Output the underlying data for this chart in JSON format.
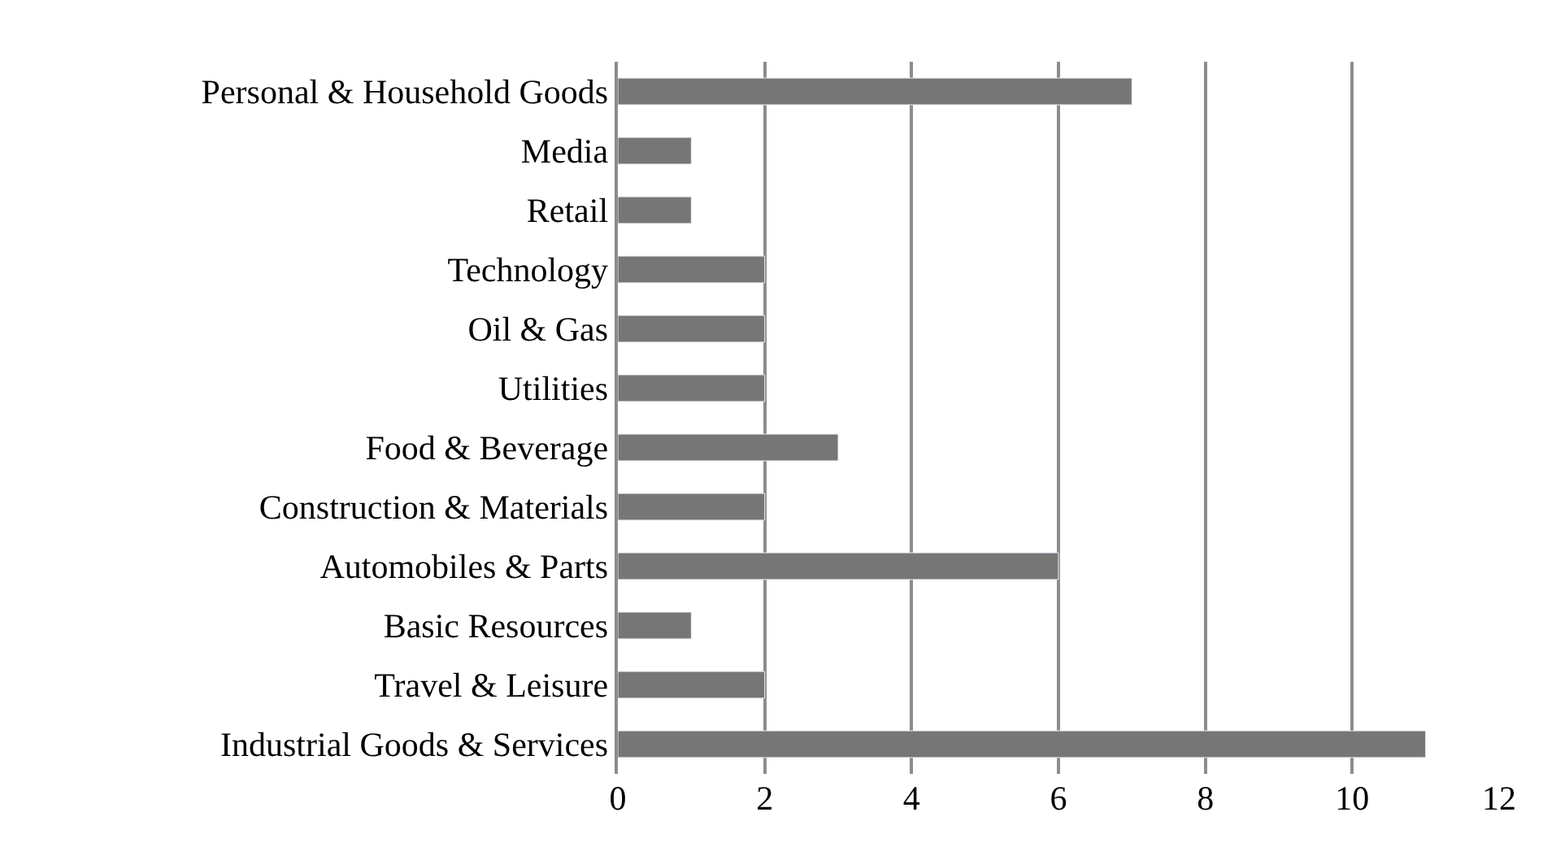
{
  "chart_data": {
    "type": "bar",
    "orientation": "horizontal",
    "categories": [
      "Personal & Household Goods",
      "Media",
      "Retail",
      "Technology",
      "Oil & Gas",
      "Utilities",
      "Food & Beverage",
      "Construction & Materials",
      "Automobiles & Parts",
      "Basic Resources",
      "Travel & Leisure",
      "Industrial Goods & Services"
    ],
    "values": [
      7,
      1,
      1,
      2,
      2,
      2,
      3,
      2,
      6,
      1,
      2,
      11
    ],
    "color": "#767676",
    "xlim": [
      0,
      12
    ],
    "xticks": [
      0,
      2,
      4,
      6,
      8,
      10,
      12
    ],
    "grid": "x"
  }
}
